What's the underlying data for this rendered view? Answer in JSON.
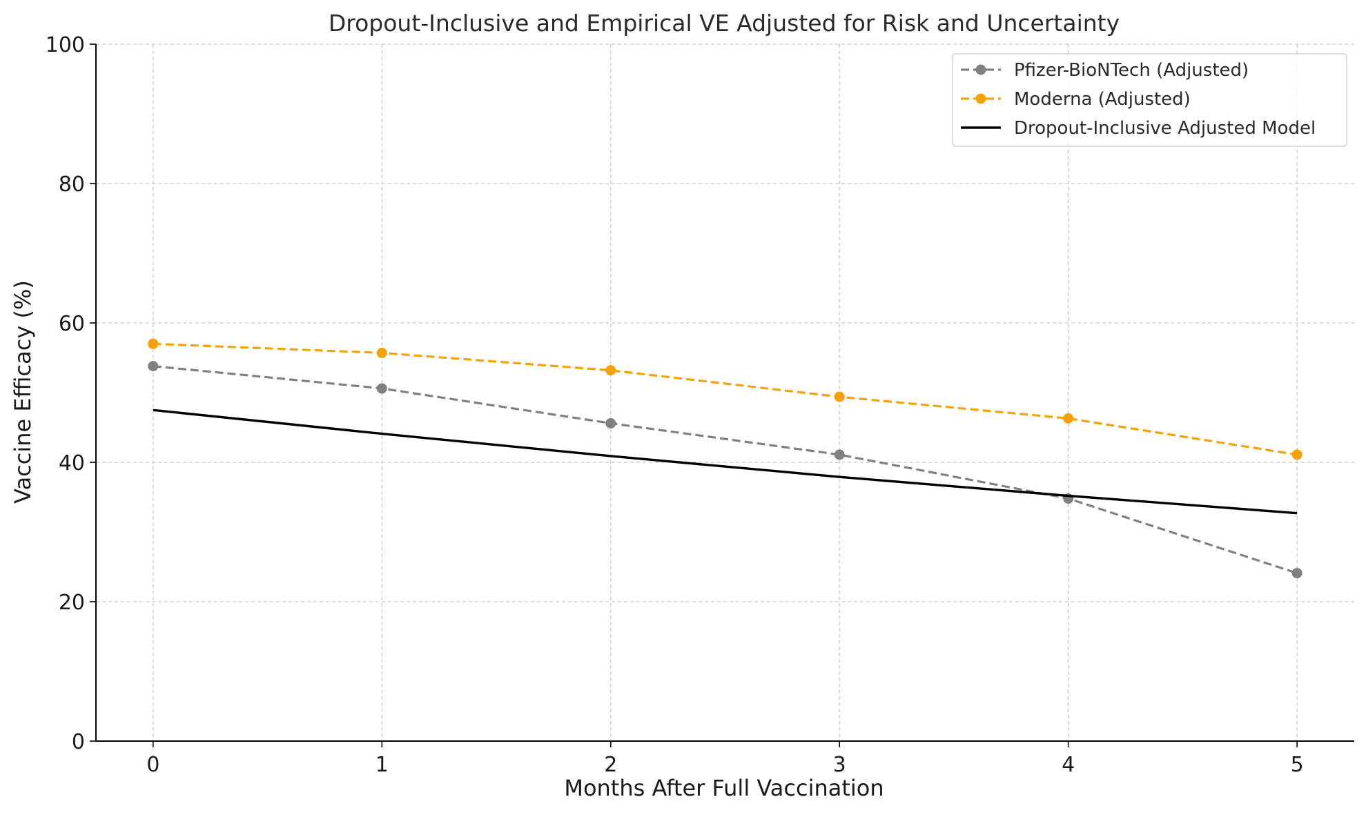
{
  "chart_data": {
    "type": "line",
    "title": "Dropout-Inclusive and Empirical VE Adjusted for Risk and Uncertainty",
    "xlabel": "Months After Full Vaccination",
    "ylabel": "Vaccine Efficacy (%)",
    "x": [
      0,
      1,
      2,
      3,
      4,
      5
    ],
    "x_ticks": [
      "0",
      "1",
      "2",
      "3",
      "4",
      "5"
    ],
    "y_ticks": [
      "0",
      "20",
      "40",
      "60",
      "80",
      "100"
    ],
    "xlim": [
      -0.25,
      5.25
    ],
    "ylim": [
      0,
      100
    ],
    "grid": true,
    "legend_position": "top-right",
    "series": [
      {
        "name": "Pfizer-BioNTech (Adjusted)",
        "values": [
          53.8,
          50.6,
          45.6,
          41.1,
          34.8,
          24.1
        ],
        "color": "#808080",
        "line_style": "dashed",
        "marker": "circle"
      },
      {
        "name": "Moderna (Adjusted)",
        "values": [
          57.0,
          55.7,
          53.2,
          49.4,
          46.3,
          41.1
        ],
        "color": "#f5a10a",
        "line_style": "dashed",
        "marker": "circle"
      },
      {
        "name": "Dropout-Inclusive Adjusted Model",
        "values": [
          47.5,
          44.1,
          40.9,
          37.9,
          35.2,
          32.7
        ],
        "color": "#000000",
        "line_style": "solid",
        "marker": "none"
      }
    ]
  }
}
